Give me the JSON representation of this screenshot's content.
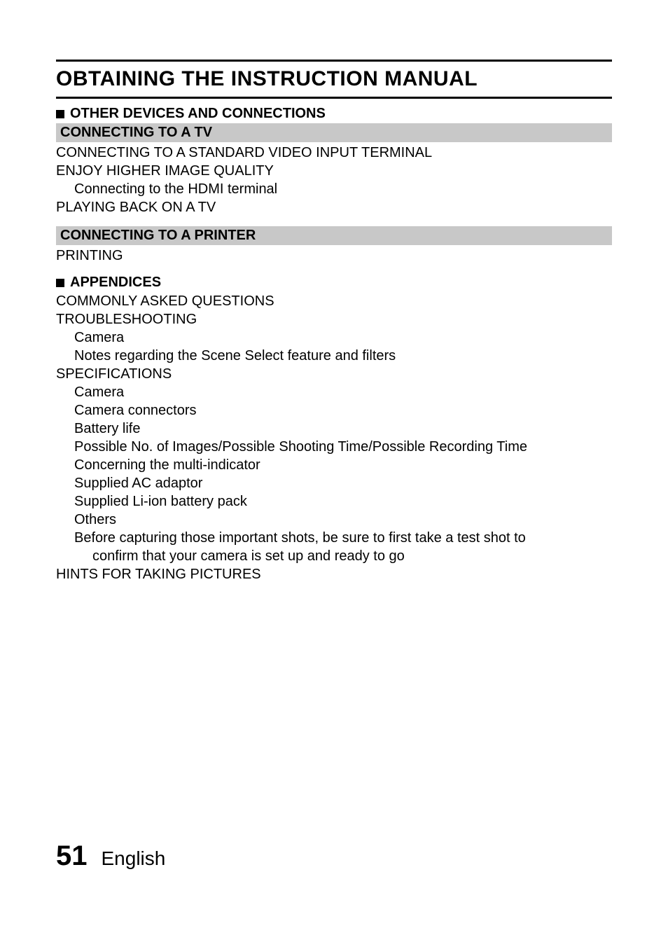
{
  "title": "OBTAINING THE INSTRUCTION MANUAL",
  "sections": [
    {
      "header": "OTHER DEVICES AND CONNECTIONS",
      "subsections": [
        {
          "gray_title": "CONNECTING TO A TV",
          "items": [
            {
              "text": "CONNECTING TO A STANDARD VIDEO INPUT TERMINAL",
              "indent": 0
            },
            {
              "text": "ENJOY HIGHER IMAGE QUALITY",
              "indent": 0
            },
            {
              "text": "Connecting to the HDMI terminal",
              "indent": 1
            },
            {
              "text": "PLAYING BACK ON A TV",
              "indent": 0
            }
          ]
        },
        {
          "gray_title": "CONNECTING TO A PRINTER",
          "items": [
            {
              "text": "PRINTING",
              "indent": 0
            }
          ]
        }
      ]
    },
    {
      "header": "APPENDICES",
      "subsections": [
        {
          "gray_title": null,
          "items": [
            {
              "text": "COMMONLY ASKED QUESTIONS",
              "indent": 0
            },
            {
              "text": "TROUBLESHOOTING",
              "indent": 0
            },
            {
              "text": "Camera",
              "indent": 1
            },
            {
              "text": "Notes regarding the Scene Select feature and filters",
              "indent": 1
            },
            {
              "text": "SPECIFICATIONS",
              "indent": 0
            },
            {
              "text": "Camera",
              "indent": 1
            },
            {
              "text": "Camera connectors",
              "indent": 1
            },
            {
              "text": "Battery life",
              "indent": 1
            },
            {
              "text": "Possible No. of Images/Possible Shooting Time/Possible Recording Time",
              "indent": 1
            },
            {
              "text": "Concerning the multi-indicator",
              "indent": 1
            },
            {
              "text": "Supplied AC adaptor",
              "indent": 1
            },
            {
              "text": "Supplied Li-ion battery pack",
              "indent": 1
            },
            {
              "text": "Others",
              "indent": 1
            },
            {
              "text": "Before capturing those important shots, be sure to first take a test shot to",
              "indent": 1
            },
            {
              "text": "confirm that your camera is set up and ready to go",
              "indent": 2
            },
            {
              "text": "HINTS FOR TAKING PICTURES",
              "indent": 0
            }
          ]
        }
      ]
    }
  ],
  "footer": {
    "page_number": "51",
    "language": "English"
  },
  "colors": {
    "background": "#ffffff",
    "text": "#000000",
    "gray_bg": "#c8c8c8",
    "rule": "#000000"
  },
  "typography": {
    "title_fontsize": 30,
    "section_fontsize": 20,
    "body_fontsize": 20,
    "page_number_fontsize": 40,
    "language_fontsize": 28
  }
}
